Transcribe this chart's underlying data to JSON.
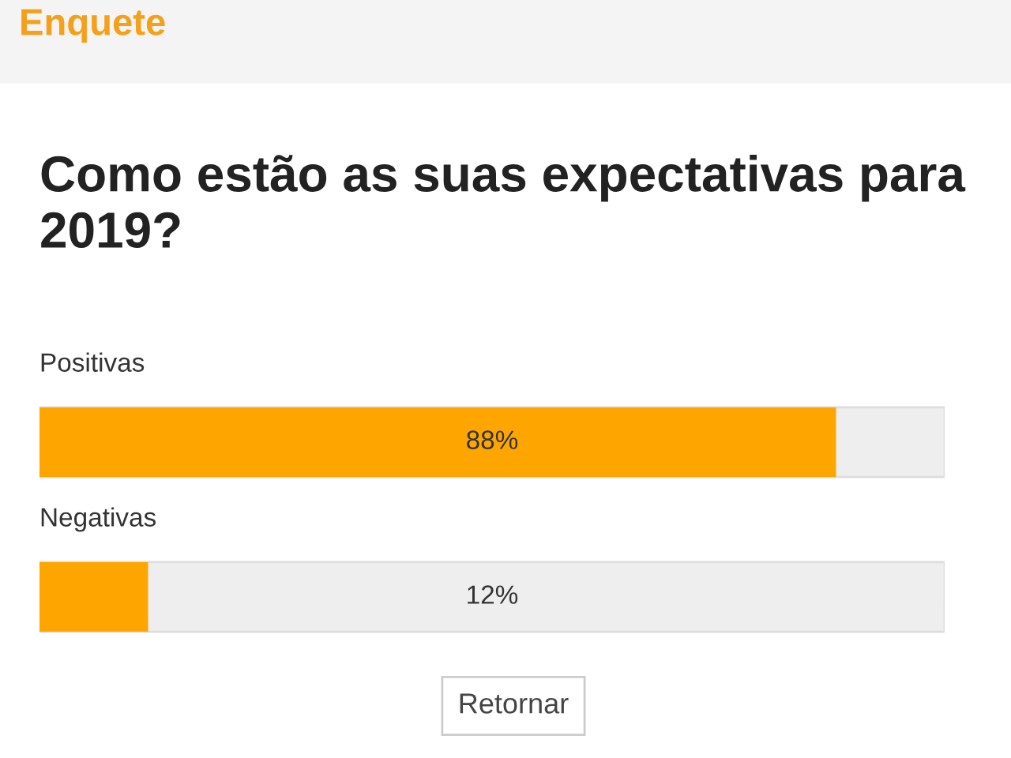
{
  "chart_data": {
    "type": "bar",
    "orientation": "horizontal",
    "title": "Enquete",
    "subtitle": "Como estão as suas expectativas para 2019?",
    "categories": [
      "Positivas",
      "Negativas"
    ],
    "values": [
      88,
      12
    ],
    "color": "#ffa500",
    "value_labels": [
      "88%",
      "12%"
    ],
    "annotations": [
      "Retornar"
    ]
  }
}
